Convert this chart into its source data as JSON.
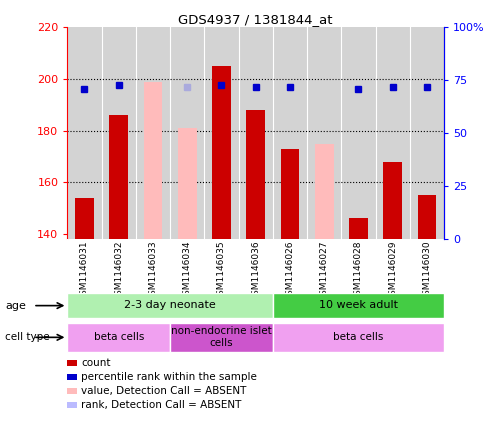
{
  "title": "GDS4937 / 1381844_at",
  "samples": [
    "GSM1146031",
    "GSM1146032",
    "GSM1146033",
    "GSM1146034",
    "GSM1146035",
    "GSM1146036",
    "GSM1146026",
    "GSM1146027",
    "GSM1146028",
    "GSM1146029",
    "GSM1146030"
  ],
  "count_values": [
    154,
    186,
    null,
    null,
    205,
    188,
    173,
    null,
    146,
    168,
    155
  ],
  "rank_values": [
    71,
    73,
    null,
    null,
    73,
    72,
    72,
    null,
    71,
    72,
    72
  ],
  "absent_value_values": [
    null,
    null,
    199,
    181,
    null,
    null,
    null,
    175,
    null,
    null,
    null
  ],
  "absent_rank_values": [
    null,
    null,
    null,
    72,
    null,
    null,
    null,
    null,
    null,
    null,
    null
  ],
  "ylim_left": [
    138,
    220
  ],
  "ylim_right": [
    0,
    100
  ],
  "yticks_left": [
    140,
    160,
    180,
    200,
    220
  ],
  "yticks_right": [
    0,
    25,
    50,
    75,
    100
  ],
  "ytick_labels_right": [
    "0",
    "25",
    "50",
    "75",
    "100%"
  ],
  "bar_bottom": 138,
  "age_groups": [
    {
      "label": "2-3 day neonate",
      "start": 0,
      "end": 6,
      "color": "#b0f0b0"
    },
    {
      "label": "10 week adult",
      "start": 6,
      "end": 11,
      "color": "#44cc44"
    }
  ],
  "cell_type_groups": [
    {
      "label": "beta cells",
      "start": 0,
      "end": 3,
      "color": "#f0a0f0"
    },
    {
      "label": "non-endocrine islet\ncells",
      "start": 3,
      "end": 6,
      "color": "#cc55cc"
    },
    {
      "label": "beta cells",
      "start": 6,
      "end": 11,
      "color": "#f0a0f0"
    }
  ],
  "legend_items": [
    {
      "color": "#cc0000",
      "label": "count"
    },
    {
      "color": "#0000cc",
      "label": "percentile rank within the sample"
    },
    {
      "color": "#ffbbbb",
      "label": "value, Detection Call = ABSENT"
    },
    {
      "color": "#bbbbff",
      "label": "rank, Detection Call = ABSENT"
    }
  ],
  "bar_color_present": "#cc0000",
  "bar_color_absent": "#ffbbbb",
  "rank_color_present": "#0000cc",
  "rank_color_absent": "#aaaadd",
  "bg_color": "#d3d3d3"
}
